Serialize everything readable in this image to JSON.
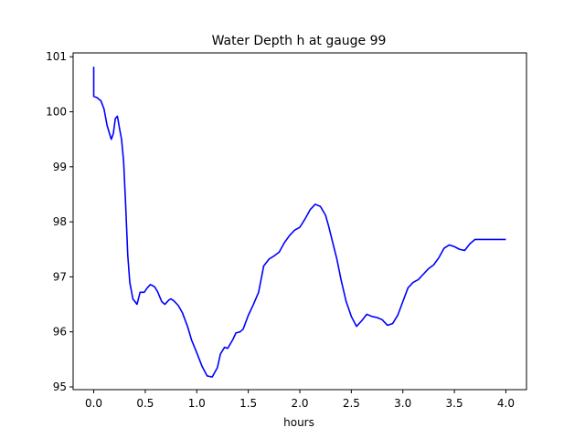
{
  "chart_data": {
    "type": "line",
    "title": "Water Depth h at gauge 99",
    "xlabel": "hours",
    "ylabel": "",
    "xlim": [
      -0.2,
      4.2
    ],
    "ylim": [
      94.95,
      101.07
    ],
    "xticks": [
      0.0,
      0.5,
      1.0,
      1.5,
      2.0,
      2.5,
      3.0,
      3.5,
      4.0
    ],
    "xtick_labels": [
      "0.0",
      "0.5",
      "1.0",
      "1.5",
      "2.0",
      "2.5",
      "3.0",
      "3.5",
      "4.0"
    ],
    "yticks": [
      95,
      96,
      97,
      98,
      99,
      100,
      101
    ],
    "ytick_labels": [
      "95",
      "96",
      "97",
      "98",
      "99",
      "100",
      "101"
    ],
    "grid": false,
    "series": [
      {
        "color": "#0000ff",
        "x": [
          0.0,
          0.0,
          0.03,
          0.07,
          0.1,
          0.13,
          0.17,
          0.19,
          0.21,
          0.23,
          0.25,
          0.27,
          0.29,
          0.31,
          0.33,
          0.35,
          0.38,
          0.42,
          0.45,
          0.49,
          0.52,
          0.55,
          0.59,
          0.62,
          0.66,
          0.69,
          0.73,
          0.75,
          0.78,
          0.82,
          0.86,
          0.91,
          0.95,
          1.0,
          1.05,
          1.1,
          1.15,
          1.2,
          1.23,
          1.27,
          1.3,
          1.35,
          1.38,
          1.42,
          1.45,
          1.5,
          1.55,
          1.6,
          1.65,
          1.7,
          1.75,
          1.8,
          1.85,
          1.9,
          1.95,
          2.0,
          2.05,
          2.1,
          2.15,
          2.2,
          2.25,
          2.28,
          2.32,
          2.36,
          2.4,
          2.45,
          2.5,
          2.55,
          2.6,
          2.65,
          2.7,
          2.75,
          2.8,
          2.85,
          2.9,
          2.95,
          3.0,
          3.05,
          3.1,
          3.15,
          3.2,
          3.25,
          3.3,
          3.35,
          3.4,
          3.45,
          3.5,
          3.55,
          3.6,
          3.65,
          3.7,
          3.75,
          3.8,
          3.85,
          3.9,
          3.95,
          4.0
        ],
        "y": [
          100.82,
          100.28,
          100.26,
          100.2,
          100.05,
          99.75,
          99.5,
          99.6,
          99.88,
          99.92,
          99.7,
          99.5,
          99.1,
          98.3,
          97.4,
          96.9,
          96.6,
          96.5,
          96.72,
          96.72,
          96.8,
          96.86,
          96.82,
          96.73,
          96.55,
          96.5,
          96.58,
          96.6,
          96.56,
          96.48,
          96.35,
          96.1,
          95.85,
          95.62,
          95.38,
          95.2,
          95.18,
          95.35,
          95.6,
          95.72,
          95.7,
          95.86,
          95.98,
          96.0,
          96.05,
          96.3,
          96.5,
          96.72,
          97.2,
          97.32,
          97.38,
          97.45,
          97.62,
          97.75,
          97.85,
          97.9,
          98.05,
          98.22,
          98.32,
          98.28,
          98.12,
          97.92,
          97.62,
          97.32,
          96.95,
          96.55,
          96.28,
          96.1,
          96.2,
          96.32,
          96.28,
          96.26,
          96.22,
          96.12,
          96.15,
          96.3,
          96.55,
          96.8,
          96.9,
          96.95,
          97.05,
          97.15,
          97.22,
          97.35,
          97.52,
          97.58,
          97.55,
          97.5,
          97.48,
          97.6,
          97.68,
          97.68,
          97.68,
          97.68,
          97.68,
          97.68,
          97.68
        ]
      }
    ]
  }
}
